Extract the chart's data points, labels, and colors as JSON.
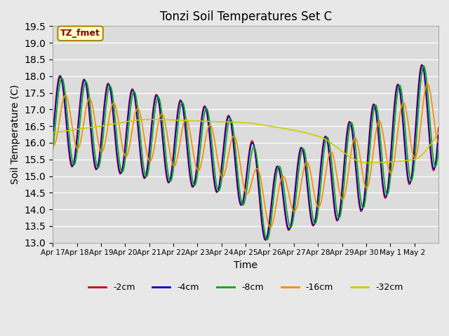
{
  "title": "Tonzi Soil Temperatures Set C",
  "xlabel": "Time",
  "ylabel": "Soil Temperature (C)",
  "ylim": [
    13.0,
    19.5
  ],
  "yticks": [
    13.0,
    13.5,
    14.0,
    14.5,
    15.0,
    15.5,
    16.0,
    16.5,
    17.0,
    17.5,
    18.0,
    18.5,
    19.0,
    19.5
  ],
  "xtick_labels": [
    "Apr 17",
    "Apr 18",
    "Apr 19",
    "Apr 20",
    "Apr 21",
    "Apr 22",
    "Apr 23",
    "Apr 24",
    "Apr 25",
    "Apr 26",
    "Apr 27",
    "Apr 28",
    "Apr 29",
    "Apr 30",
    "May 1",
    "May 2"
  ],
  "legend_entries": [
    "-2cm",
    "-4cm",
    "-8cm",
    "-16cm",
    "-32cm"
  ],
  "annotation_text": "TZ_fmet",
  "annotation_bg": "#ffffcc",
  "annotation_border": "#aa8800",
  "line_colors": [
    "#cc0000",
    "#0000cc",
    "#00aa00",
    "#ff8800",
    "#cccc00"
  ],
  "fig_bg": "#e8e8e8",
  "plot_bg": "#dcdcdc"
}
